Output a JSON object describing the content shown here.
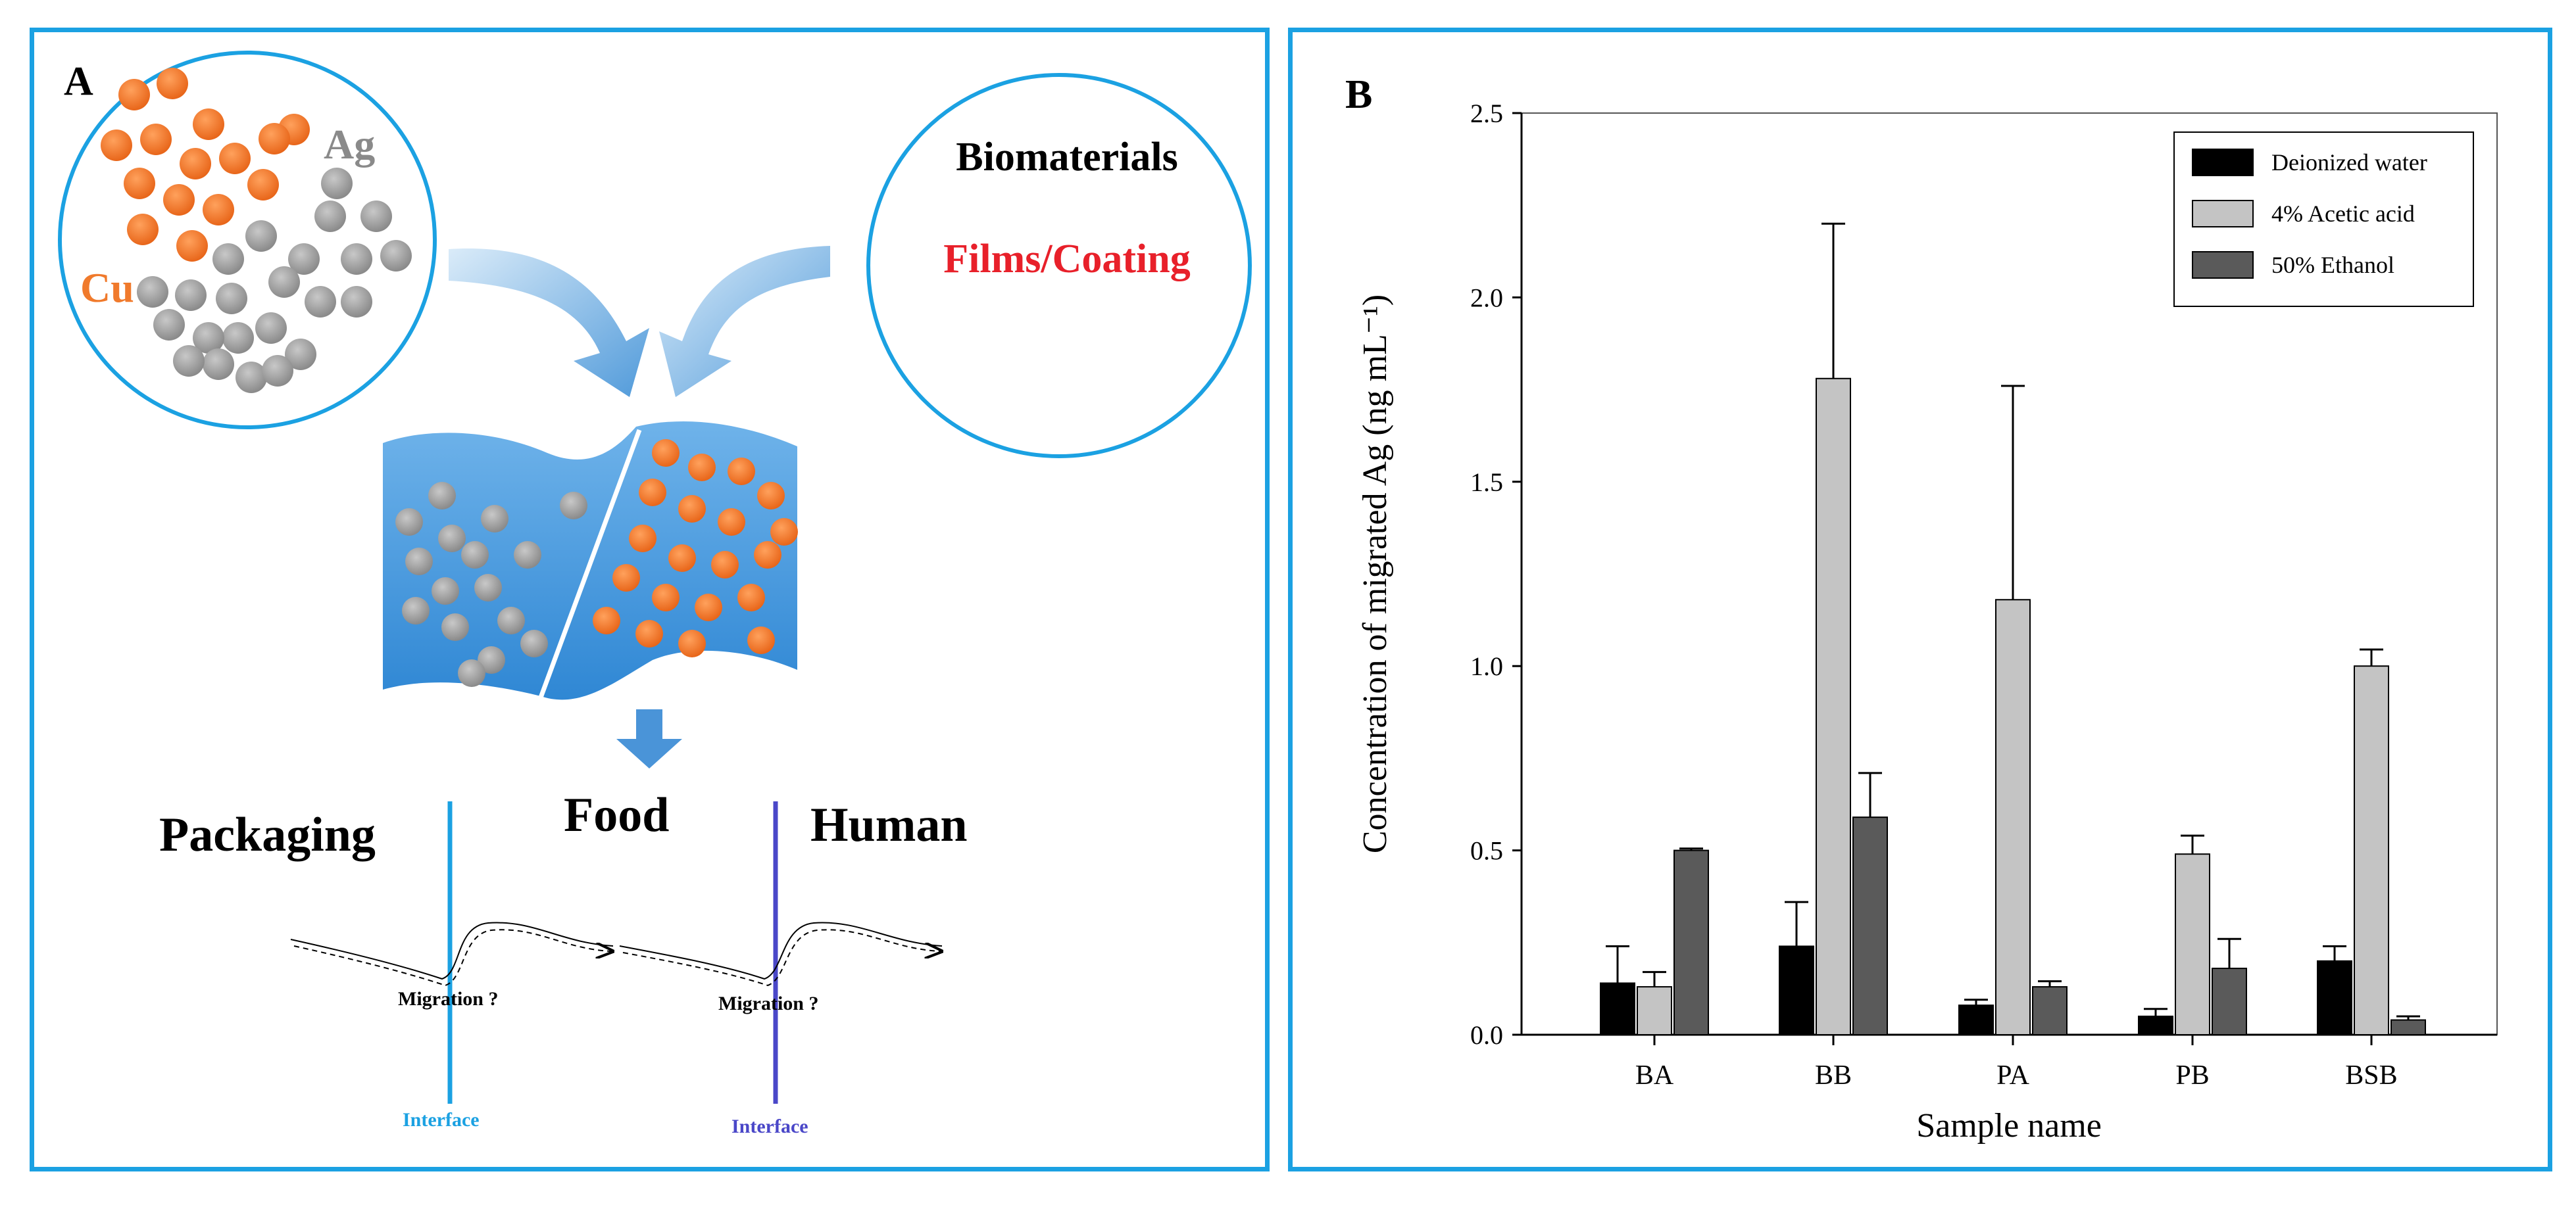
{
  "panel_a": {
    "letter": "A",
    "cu_label": "Cu",
    "ag_label": "Ag",
    "biomaterials": "Biomaterials",
    "films_coating": "Films/Coating",
    "packaging": "Packaging",
    "food": "Food",
    "human": "Human",
    "migration_1": "Migration ?",
    "migration_2": "Migration ?",
    "interface_1": "Interface",
    "interface_2": "Interface",
    "colors": {
      "copper": "#f07a2c",
      "silver": "#9a9a9a",
      "accent": "#1ba1e2",
      "films": "#e8202a",
      "interface_2": "#4a47c8"
    }
  },
  "panel_b": {
    "letter": "B"
  },
  "chart_data": {
    "type": "bar",
    "title": "",
    "xlabel": "Sample name",
    "ylabel": "Concentration of migrated Ag (ng mL⁻¹)",
    "categories": [
      "BA",
      "BB",
      "PA",
      "PB",
      "BSB"
    ],
    "ylim": [
      0,
      2.5
    ],
    "yticks": [
      "0.0",
      "0.5",
      "1.0",
      "1.5",
      "2.0",
      "2.5"
    ],
    "legend_position": "top-right",
    "series": [
      {
        "name": "Deionized water",
        "color": "#000000",
        "values": [
          0.14,
          0.24,
          0.08,
          0.05,
          0.2
        ],
        "errors": [
          0.1,
          0.12,
          0.015,
          0.02,
          0.04
        ]
      },
      {
        "name": "4% Acetic acid",
        "color": "#c4c4c4",
        "values": [
          0.13,
          1.78,
          1.18,
          0.49,
          1.0
        ],
        "errors": [
          0.04,
          0.42,
          0.58,
          0.05,
          0.045
        ]
      },
      {
        "name": "50% Ethanol",
        "color": "#5a5a5a",
        "values": [
          0.5,
          0.59,
          0.13,
          0.18,
          0.04
        ],
        "errors": [
          0.005,
          0.12,
          0.015,
          0.08,
          0.01
        ]
      }
    ]
  }
}
